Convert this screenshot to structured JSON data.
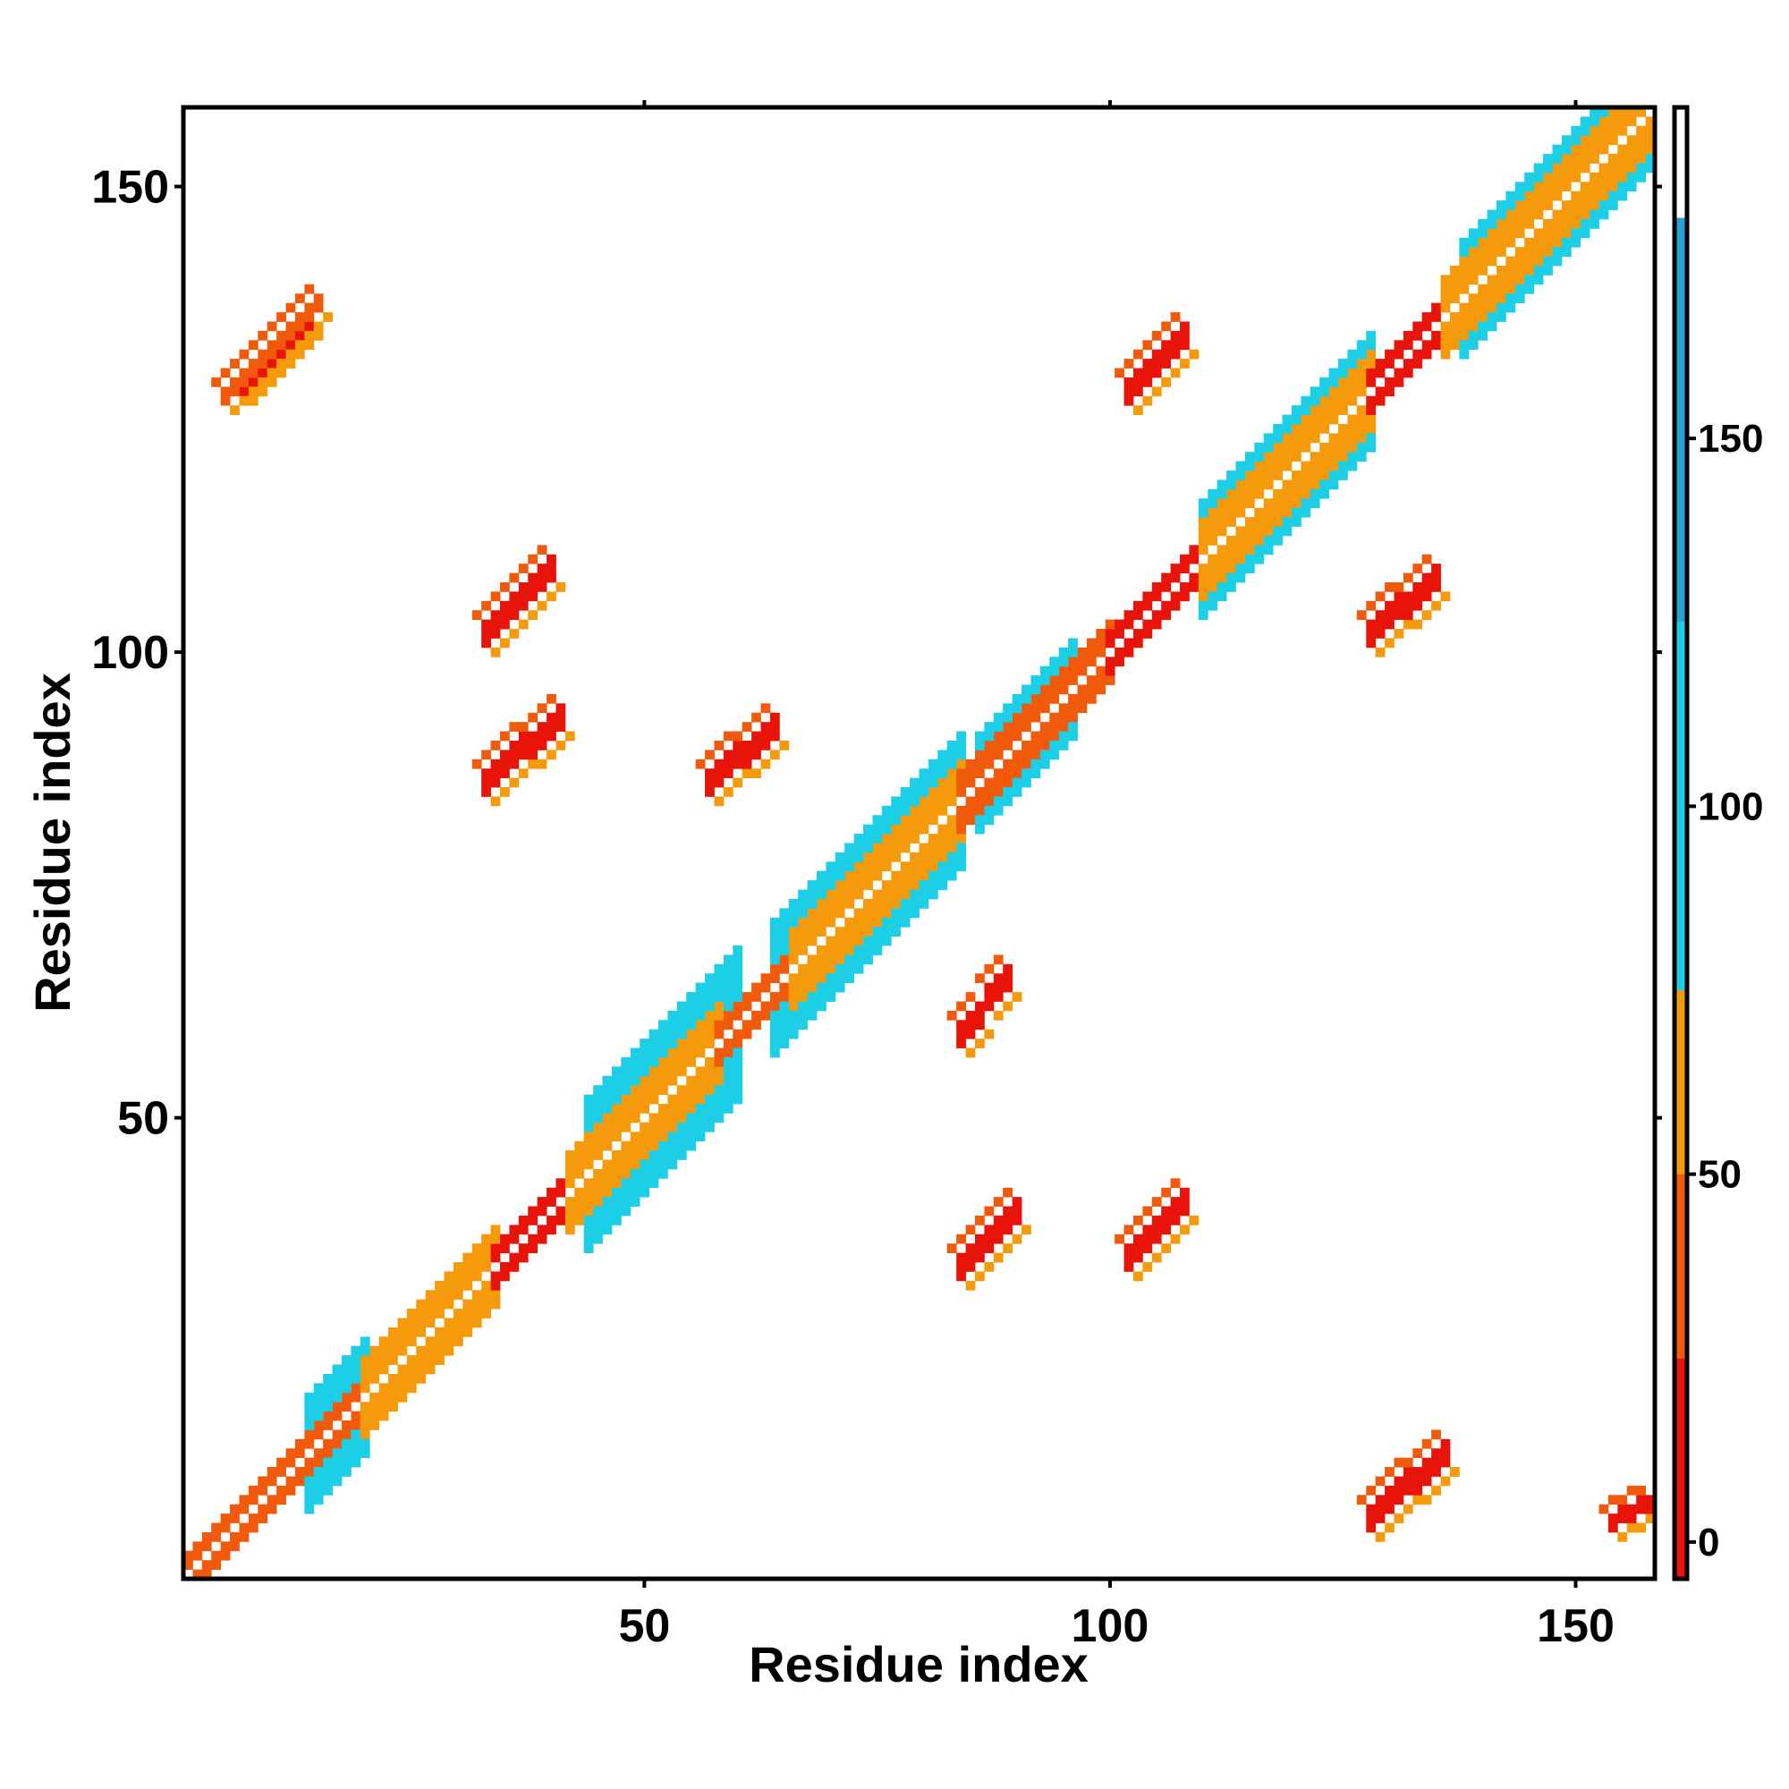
{
  "chart_data": {
    "type": "heatmap",
    "title": "",
    "xlabel": "Residue index",
    "ylabel": "Residue index",
    "xlim": [
      1,
      158
    ],
    "ylim": [
      1,
      158
    ],
    "x_ticks": [
      50,
      100,
      150
    ],
    "y_ticks": [
      50,
      100,
      150
    ],
    "x_tick_labels": [
      "50",
      "100",
      "150"
    ],
    "y_tick_labels": [
      "50",
      "100",
      "150"
    ],
    "grid": false,
    "legend": "none",
    "colorbar": {
      "position": "right",
      "range": [
        -5,
        195
      ],
      "ticks": [
        0,
        50,
        100,
        150
      ],
      "tick_labels": [
        "0",
        "50",
        "100",
        "150"
      ],
      "bands": [
        {
          "from": -5,
          "to": 25,
          "color": "#e8140a"
        },
        {
          "from": 25,
          "to": 50,
          "color": "#f05a0a"
        },
        {
          "from": 50,
          "to": 75,
          "color": "#f59a0a"
        },
        {
          "from": 75,
          "to": 125,
          "color": "#1ccfe6"
        },
        {
          "from": 125,
          "to": 180,
          "color": "#2aa2d6"
        },
        {
          "from": 180,
          "to": 195,
          "color": "#ffffff"
        }
      ]
    },
    "band_colors": {
      "0": "#e8140a",
      "25": "#f05a0a",
      "50": "#f59a0a",
      "90": "#1ccfe6",
      "150": "#2aa2d6"
    },
    "regions": [
      {
        "kind": "diagonal",
        "from": 1,
        "to": 20,
        "half_width": 2,
        "value": 25
      },
      {
        "kind": "diagonal",
        "from": 20,
        "to": 34,
        "half_width": 4,
        "value": 50
      },
      {
        "kind": "diagonal",
        "from": 34,
        "to": 42,
        "half_width": 2,
        "value": 0
      },
      {
        "kind": "diagonal",
        "from": 42,
        "to": 58,
        "half_width": 4,
        "value": 50
      },
      {
        "kind": "diagonal",
        "from": 58,
        "to": 66,
        "half_width": 2,
        "value": 25
      },
      {
        "kind": "diagonal",
        "from": 66,
        "to": 84,
        "half_width": 4,
        "value": 50
      },
      {
        "kind": "diagonal",
        "from": 84,
        "to": 100,
        "half_width": 3,
        "value": 25
      },
      {
        "kind": "diagonal",
        "from": 100,
        "to": 110,
        "half_width": 2,
        "value": 0
      },
      {
        "kind": "diagonal",
        "from": 110,
        "to": 128,
        "half_width": 4,
        "value": 50
      },
      {
        "kind": "diagonal",
        "from": 128,
        "to": 136,
        "half_width": 2,
        "value": 0
      },
      {
        "kind": "diagonal",
        "from": 136,
        "to": 158,
        "half_width": 4,
        "value": 50
      },
      {
        "kind": "diagonal",
        "from": 14,
        "to": 20,
        "half_width": 6,
        "value": 90
      },
      {
        "kind": "diagonal",
        "from": 44,
        "to": 60,
        "half_width": 8,
        "value": 90
      },
      {
        "kind": "diagonal",
        "from": 64,
        "to": 84,
        "half_width": 7,
        "value": 90
      },
      {
        "kind": "diagonal",
        "from": 86,
        "to": 96,
        "half_width": 5,
        "value": 90
      },
      {
        "kind": "diagonal",
        "from": 110,
        "to": 128,
        "half_width": 6,
        "value": 90
      },
      {
        "kind": "diagonal",
        "from": 138,
        "to": 158,
        "half_width": 6,
        "value": 90
      },
      {
        "kind": "anti",
        "x": [
          7,
          14
        ],
        "y": [
          128,
          135
        ],
        "width": 3,
        "value": 0
      },
      {
        "kind": "anti",
        "x": [
          5,
          15
        ],
        "y": [
          127,
          137
        ],
        "width": 2,
        "value": 25
      },
      {
        "kind": "anti",
        "x": [
          33,
          40
        ],
        "y": [
          101,
          108
        ],
        "width": 3,
        "value": 0
      },
      {
        "kind": "anti",
        "x": [
          33,
          41
        ],
        "y": [
          85,
          92
        ],
        "width": 3,
        "value": 0
      },
      {
        "kind": "anti",
        "x": [
          57,
          64
        ],
        "y": [
          85,
          91
        ],
        "width": 3,
        "value": 0
      },
      {
        "kind": "anti",
        "x": [
          102,
          108
        ],
        "y": [
          127,
          133
        ],
        "width": 3,
        "value": 0
      },
      {
        "kind": "anti",
        "x": [
          128,
          135
        ],
        "y": [
          101,
          107
        ],
        "width": 3,
        "value": 0
      },
      {
        "kind": "anti",
        "x": [
          84,
          89
        ],
        "y": [
          58,
          64
        ],
        "width": 3,
        "value": 0
      },
      {
        "kind": "anti",
        "x": [
          84,
          90
        ],
        "y": [
          33,
          39
        ],
        "width": 3,
        "value": 0
      },
      {
        "kind": "anti",
        "x": [
          102,
          108
        ],
        "y": [
          34,
          40
        ],
        "width": 3,
        "value": 0
      },
      {
        "kind": "anti",
        "x": [
          128,
          136
        ],
        "y": [
          6,
          13
        ],
        "width": 3,
        "value": 0
      },
      {
        "kind": "anti",
        "x": [
          154,
          158
        ],
        "y": [
          6,
          8
        ],
        "width": 2,
        "value": 0
      }
    ]
  }
}
